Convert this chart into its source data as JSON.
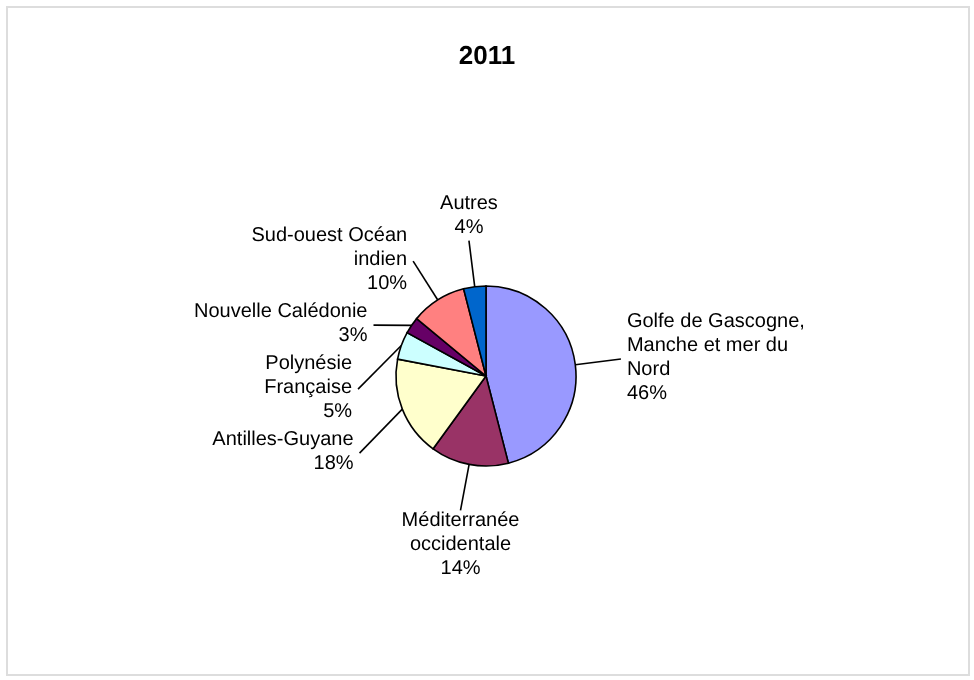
{
  "chart_data": {
    "type": "pie",
    "title": "2011",
    "categories": [
      "Golfe de Gascogne, Manche et mer du Nord",
      "Méditerranée occidentale",
      "Antilles-Guyane",
      "Polynésie Française",
      "Nouvelle Calédonie",
      "Sud-ouest Océan indien",
      "Autres"
    ],
    "values": [
      46,
      14,
      18,
      5,
      3,
      10,
      4
    ],
    "value_labels": [
      "46%",
      "14%",
      "18%",
      "5%",
      "3%",
      "10%",
      "4%"
    ],
    "colors": [
      "#9999ff",
      "#993366",
      "#ffffcc",
      "#ccffff",
      "#660066",
      "#ff8080",
      "#0066cc"
    ],
    "legend": false
  }
}
